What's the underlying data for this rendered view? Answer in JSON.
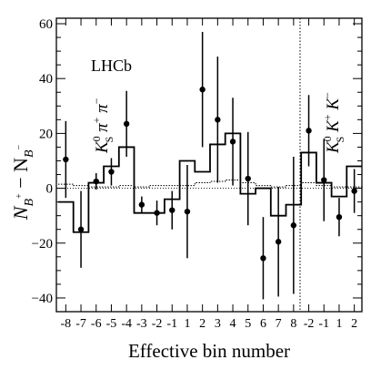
{
  "chart_data": {
    "type": "scatter",
    "xlabel": "Effective bin number",
    "ylabel_main": "N",
    "ylabel_sub_plus": "B",
    "ylabel_sup_plus": "+",
    "ylabel_minus": " − N",
    "ylabel_sub_minus": "B",
    "ylabel_sup_minus": "−",
    "experiment_label": "LHCb",
    "region_labels": [
      {
        "main": "K",
        "sup": "0",
        "sub": "S",
        "rest": " π",
        "rest_sup": "+",
        "rest2": " π",
        "rest2_sup": "−"
      },
      {
        "main": "K",
        "sup": "0",
        "sub": "S",
        "rest": " K",
        "rest_sup": "+",
        "rest2": " K",
        "rest2_sup": "−"
      }
    ],
    "x_tick_labels": [
      "-8",
      "-7",
      "-6",
      "-5",
      "-4",
      "-3",
      "-2",
      "-1",
      "1",
      "2",
      "3",
      "4",
      "5",
      "6",
      "7",
      "8",
      "-2",
      "-1",
      "1",
      "2"
    ],
    "y_ticks": [
      -40,
      -20,
      0,
      20,
      40,
      60
    ],
    "y_tick_labels": [
      "−40",
      "−20",
      "0",
      "20",
      "40",
      "60"
    ],
    "ylim": [
      -45,
      62
    ],
    "grid": false,
    "series": [
      {
        "type": "points_with_errors",
        "values": [
          10.5,
          -15,
          2.5,
          6,
          23.5,
          -6,
          -9,
          -8,
          -8.5,
          36,
          25,
          17,
          3.5,
          -25.5,
          -19.5,
          -13.5,
          21,
          3,
          -10.5,
          -1
        ],
        "errors": [
          14,
          14,
          3,
          5,
          12,
          3,
          4.5,
          7,
          17,
          21,
          23,
          16,
          17,
          15,
          20,
          25,
          13,
          15,
          7,
          8
        ]
      },
      {
        "type": "histogram_solid",
        "values": [
          -5,
          -16,
          2,
          8,
          15,
          -9,
          -9,
          -4,
          10,
          6,
          16,
          20,
          -2,
          0,
          -10,
          -6,
          13,
          2,
          -3,
          8
        ]
      },
      {
        "type": "histogram_dotted",
        "values": [
          1.5,
          1,
          0.5,
          0.5,
          1,
          0.5,
          1,
          1,
          1,
          2,
          2.5,
          3,
          2,
          1,
          0.5,
          1,
          2,
          1,
          0.5,
          0.5
        ]
      }
    ]
  }
}
